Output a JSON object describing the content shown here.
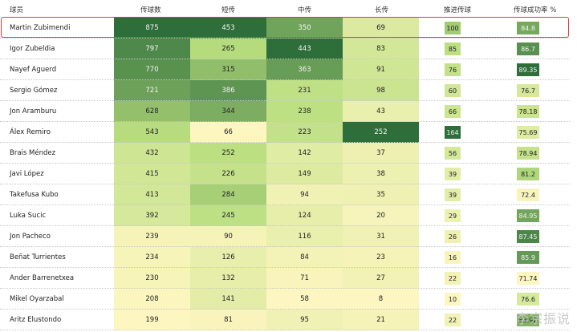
{
  "headers": {
    "player": "球员",
    "passes": "传球数",
    "short": "短传",
    "mid": "中传",
    "long": "长传",
    "progressive": "推进传球",
    "success": "传球成功率 %"
  },
  "rows": [
    {
      "name": "Martin Zubimendi",
      "passes": "875",
      "short": "453",
      "mid": "350",
      "long": "69",
      "prog": "100",
      "succ": "84.8"
    },
    {
      "name": "Igor Zubeldia",
      "passes": "797",
      "short": "265",
      "mid": "443",
      "long": "83",
      "prog": "85",
      "succ": "86.7"
    },
    {
      "name": "Nayef Aguerd",
      "passes": "770",
      "short": "315",
      "mid": "363",
      "long": "91",
      "prog": "76",
      "succ": "89.35"
    },
    {
      "name": "Sergio Gómez",
      "passes": "721",
      "short": "386",
      "mid": "231",
      "long": "98",
      "prog": "60",
      "succ": "76.7"
    },
    {
      "name": "Jon Aramburu",
      "passes": "628",
      "short": "344",
      "mid": "238",
      "long": "43",
      "prog": "66",
      "succ": "78.18"
    },
    {
      "name": "Álex Remiro",
      "passes": "543",
      "short": "66",
      "mid": "223",
      "long": "252",
      "prog": "164",
      "succ": "75.69"
    },
    {
      "name": "Brais Méndez",
      "passes": "432",
      "short": "252",
      "mid": "142",
      "long": "37",
      "prog": "56",
      "succ": "78.94"
    },
    {
      "name": "Javi López",
      "passes": "415",
      "short": "226",
      "mid": "149",
      "long": "38",
      "prog": "39",
      "succ": "81.2"
    },
    {
      "name": "Takefusa Kubo",
      "passes": "413",
      "short": "284",
      "mid": "94",
      "long": "35",
      "prog": "39",
      "succ": "72.4"
    },
    {
      "name": "Luka Sucic",
      "passes": "392",
      "short": "245",
      "mid": "124",
      "long": "20",
      "prog": "29",
      "succ": "84.95"
    },
    {
      "name": "Jon Pacheco",
      "passes": "239",
      "short": "90",
      "mid": "116",
      "long": "31",
      "prog": "26",
      "succ": "87.45"
    },
    {
      "name": "Beñat Turrientes",
      "passes": "234",
      "short": "126",
      "mid": "84",
      "long": "23",
      "prog": "16",
      "succ": "85.9"
    },
    {
      "name": "Ander Barrenetxea",
      "passes": "230",
      "short": "132",
      "mid": "71",
      "long": "27",
      "prog": "22",
      "succ": "71.74"
    },
    {
      "name": "Mikel Oyarzabal",
      "passes": "208",
      "short": "141",
      "mid": "58",
      "long": "8",
      "prog": "10",
      "succ": "76.6"
    },
    {
      "name": "Aritz Elustondo",
      "passes": "199",
      "short": "81",
      "mid": "95",
      "long": "21",
      "prog": "22",
      "succ": "83.92"
    }
  ],
  "colors": {
    "scale_low": "#fdf6c0",
    "scale_mid": "#b9de7f",
    "scale_high": "#2e6e3a",
    "highlight_border": "#e03a3a"
  },
  "watermark": "李宗振说"
}
